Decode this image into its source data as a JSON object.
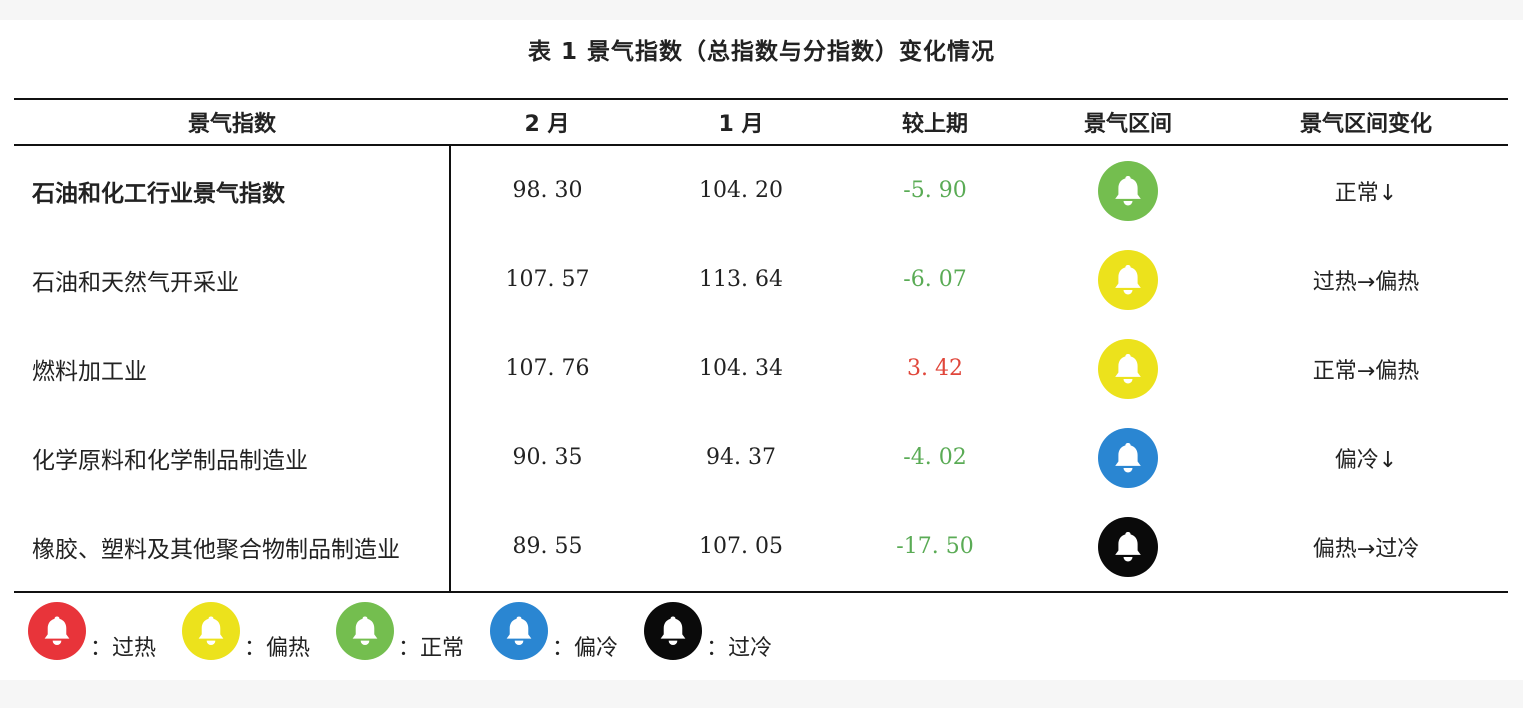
{
  "caption": "表 1   景气指数（总指数与分指数）变化情况",
  "headers": [
    "景气指数",
    "2 月",
    "1 月",
    "较上期",
    "景气区间",
    "景气区间变化"
  ],
  "colors": {
    "overheat": "#e8343a",
    "warm": "#ece21c",
    "normal": "#74be4f",
    "cool": "#2a86d2",
    "cold": "#0a0a0a",
    "negative_change": "#5aab55",
    "positive_change": "#e0463a"
  },
  "rows": [
    {
      "name": "石油和化工行业景气指数",
      "feb": "98. 30",
      "jan": "104. 20",
      "change": "-5. 90",
      "change_sign": "negative",
      "zone": "normal",
      "zone_icon": "bell-icon",
      "zone_change": "正常↓"
    },
    {
      "name": "石油和天然气开采业",
      "feb": "107. 57",
      "jan": "113. 64",
      "change": "-6. 07",
      "change_sign": "negative",
      "zone": "warm",
      "zone_icon": "bell-icon",
      "zone_change": "过热→偏热"
    },
    {
      "name": "燃料加工业",
      "feb": "107. 76",
      "jan": "104. 34",
      "change": "3. 42",
      "change_sign": "positive",
      "zone": "warm",
      "zone_icon": "bell-icon",
      "zone_change": "正常→偏热"
    },
    {
      "name": "化学原料和化学制品制造业",
      "feb": "90. 35",
      "jan": "94. 37",
      "change": "-4. 02",
      "change_sign": "negative",
      "zone": "cool",
      "zone_icon": "bell-icon",
      "zone_change": "偏冷↓"
    },
    {
      "name": "橡胶、塑料及其他聚合物制品制造业",
      "feb": "89. 55",
      "jan": "107. 05",
      "change": "-17. 50",
      "change_sign": "negative",
      "zone": "cold",
      "zone_icon": "bell-icon",
      "zone_change": "偏热→过冷"
    }
  ],
  "legend": [
    {
      "zone": "overheat",
      "label": "：过热"
    },
    {
      "zone": "warm",
      "label": "：偏热"
    },
    {
      "zone": "normal",
      "label": "：正常"
    },
    {
      "zone": "cool",
      "label": "：偏冷"
    },
    {
      "zone": "cold",
      "label": "：过冷"
    }
  ]
}
